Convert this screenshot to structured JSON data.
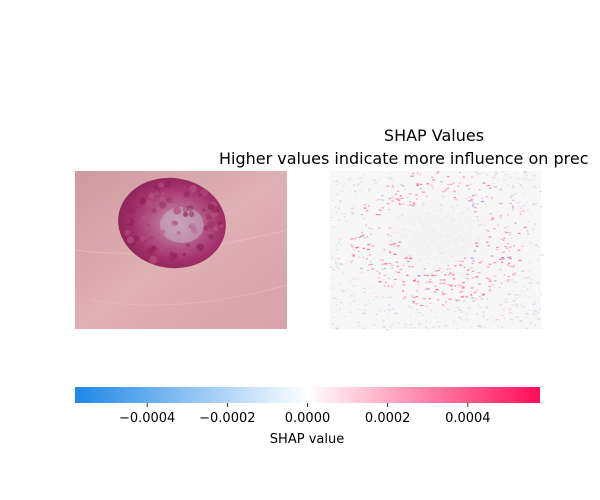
{
  "panel_right": {
    "title": "SHAP Values",
    "subtitle": "Higher values indicate more influence on prec"
  },
  "colorbar": {
    "label": "SHAP value",
    "ticks": [
      "−0.0004",
      "−0.0002",
      "0.0000",
      "0.0002",
      "0.0004"
    ],
    "tick_values": [
      -0.0004,
      -0.0002,
      0.0,
      0.0002,
      0.0004
    ],
    "range": [
      -0.00058,
      0.00058
    ],
    "colors": {
      "negative": "#1e88e5",
      "zero": "#ffffff",
      "positive": "#ff0d57"
    }
  },
  "images": {
    "left": {
      "subject": "skin-lesion-photo",
      "skin_color": "#d9a3a9",
      "lesion_color": "#a8336b"
    },
    "right": {
      "subject": "shap-attribution-map"
    }
  }
}
